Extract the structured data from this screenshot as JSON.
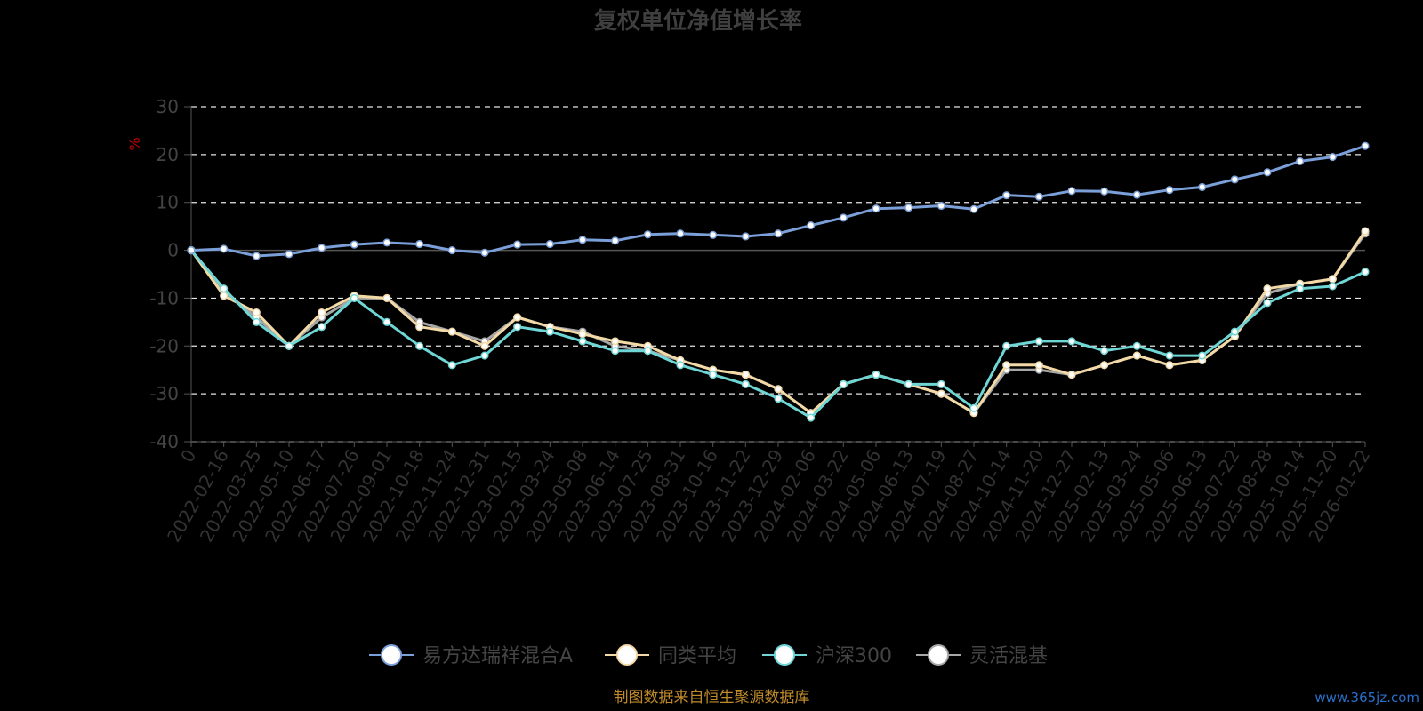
{
  "chart_data": {
    "type": "line",
    "title": "复权单位净值增长率",
    "ylabel": "%",
    "ylim": [
      -40,
      30
    ],
    "yticks": [
      30,
      20,
      10,
      0,
      -10,
      -20,
      -30,
      -40
    ],
    "grid": true,
    "legend_position": "bottom-center",
    "categories": [
      "0",
      "2022-02-16",
      "2022-03-25",
      "2022-05-10",
      "2022-06-17",
      "2022-07-26",
      "2022-09-01",
      "2022-10-18",
      "2022-11-24",
      "2022-12-31",
      "2023-02-15",
      "2023-03-24",
      "2023-05-08",
      "2023-06-14",
      "2023-07-25",
      "2023-08-31",
      "2023-10-16",
      "2023-11-22",
      "2023-12-29",
      "2024-02-06",
      "2024-03-22",
      "2024-05-06",
      "2024-06-13",
      "2024-07-19",
      "2024-08-27",
      "2024-10-14",
      "2024-11-20",
      "2024-12-27",
      "2025-02-13",
      "2025-03-24",
      "2025-05-06",
      "2025-06-13",
      "2025-07-22",
      "2025-08-28",
      "2025-10-14",
      "2025-11-20",
      "2026-01-22"
    ],
    "series": [
      {
        "name": "易方达瑞祥混合A",
        "color": "#7b9fd8",
        "values": [
          0,
          0.3,
          -1.2,
          -0.8,
          0.5,
          1.2,
          1.6,
          1.3,
          0,
          -0.5,
          1.2,
          1.3,
          2.2,
          2,
          3.3,
          3.5,
          3.2,
          2.9,
          3.5,
          5.2,
          6.8,
          8.7,
          8.9,
          9.3,
          8.6,
          11.5,
          11.2,
          12.4,
          12.3,
          11.6,
          12.6,
          13.2,
          14.8,
          16.3,
          18.6,
          19.5,
          21.8
        ]
      },
      {
        "name": "同类平均",
        "color": "#f3d9a6",
        "values": [
          0,
          -9.5,
          -13,
          -20,
          -13,
          -9.5,
          -10,
          -16,
          -17,
          -20,
          -14,
          -16,
          -17.5,
          -19,
          -20,
          -23,
          -25,
          -26,
          -29,
          -34,
          -28,
          -26,
          -28,
          -30,
          -34,
          -24,
          -24,
          -26,
          -24,
          -22,
          -24,
          -23,
          -18,
          -8,
          -7,
          -6,
          4
        ]
      },
      {
        "name": "沪深300",
        "color": "#6fd6d6",
        "values": [
          0,
          -8,
          -15,
          -20,
          -16,
          -10,
          -15,
          -20,
          -24,
          -22,
          -16,
          -17,
          -19,
          -21,
          -21,
          -24,
          -26,
          -28,
          -31,
          -35,
          -28,
          -26,
          -28,
          -28,
          -33,
          -20,
          -19,
          -19,
          -21,
          -20,
          -22,
          -22,
          -17,
          -11,
          -8,
          -7.5,
          -4.5
        ]
      },
      {
        "name": "灵活混基",
        "color": "#a7a7a7",
        "values": [
          0,
          -8.5,
          -14,
          -20,
          -14,
          -10,
          -10,
          -15,
          -17,
          -19,
          -14,
          -16,
          -17,
          -20,
          -21,
          -23,
          -25,
          -26,
          -29,
          -34,
          -28,
          -26,
          -28,
          -30,
          -34,
          -25,
          -25,
          -26,
          -24,
          -22,
          -24,
          -23,
          -18,
          -9,
          -7,
          -6,
          3.5
        ]
      }
    ]
  },
  "source_note": "制图数据来自恒生聚源数据库",
  "watermark": "www.365jz.com"
}
